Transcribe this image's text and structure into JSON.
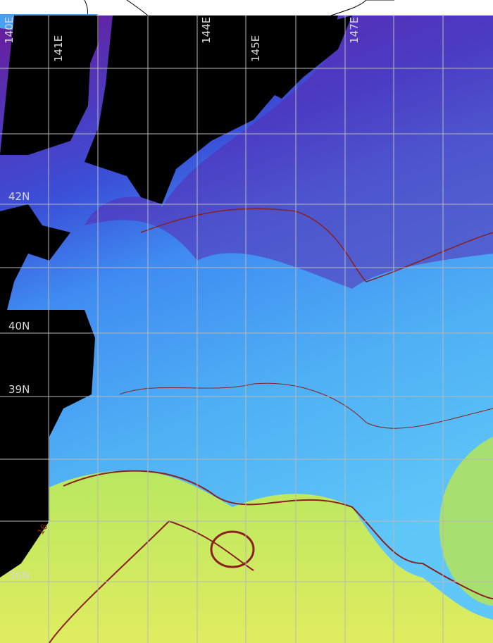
{
  "map": {
    "lon_labels": [
      "140E",
      "141E",
      "144E",
      "145E",
      "147E"
    ],
    "lat_labels": [
      "42N",
      "40N",
      "39N",
      "36N"
    ],
    "contour_label": "16",
    "colors": {
      "land": "#000000",
      "cold": "#6a1a9a",
      "mid": "#3a8cf0",
      "warm": "#c8e860",
      "contour": "#8a2020",
      "grid": "#b8b8b8"
    }
  }
}
